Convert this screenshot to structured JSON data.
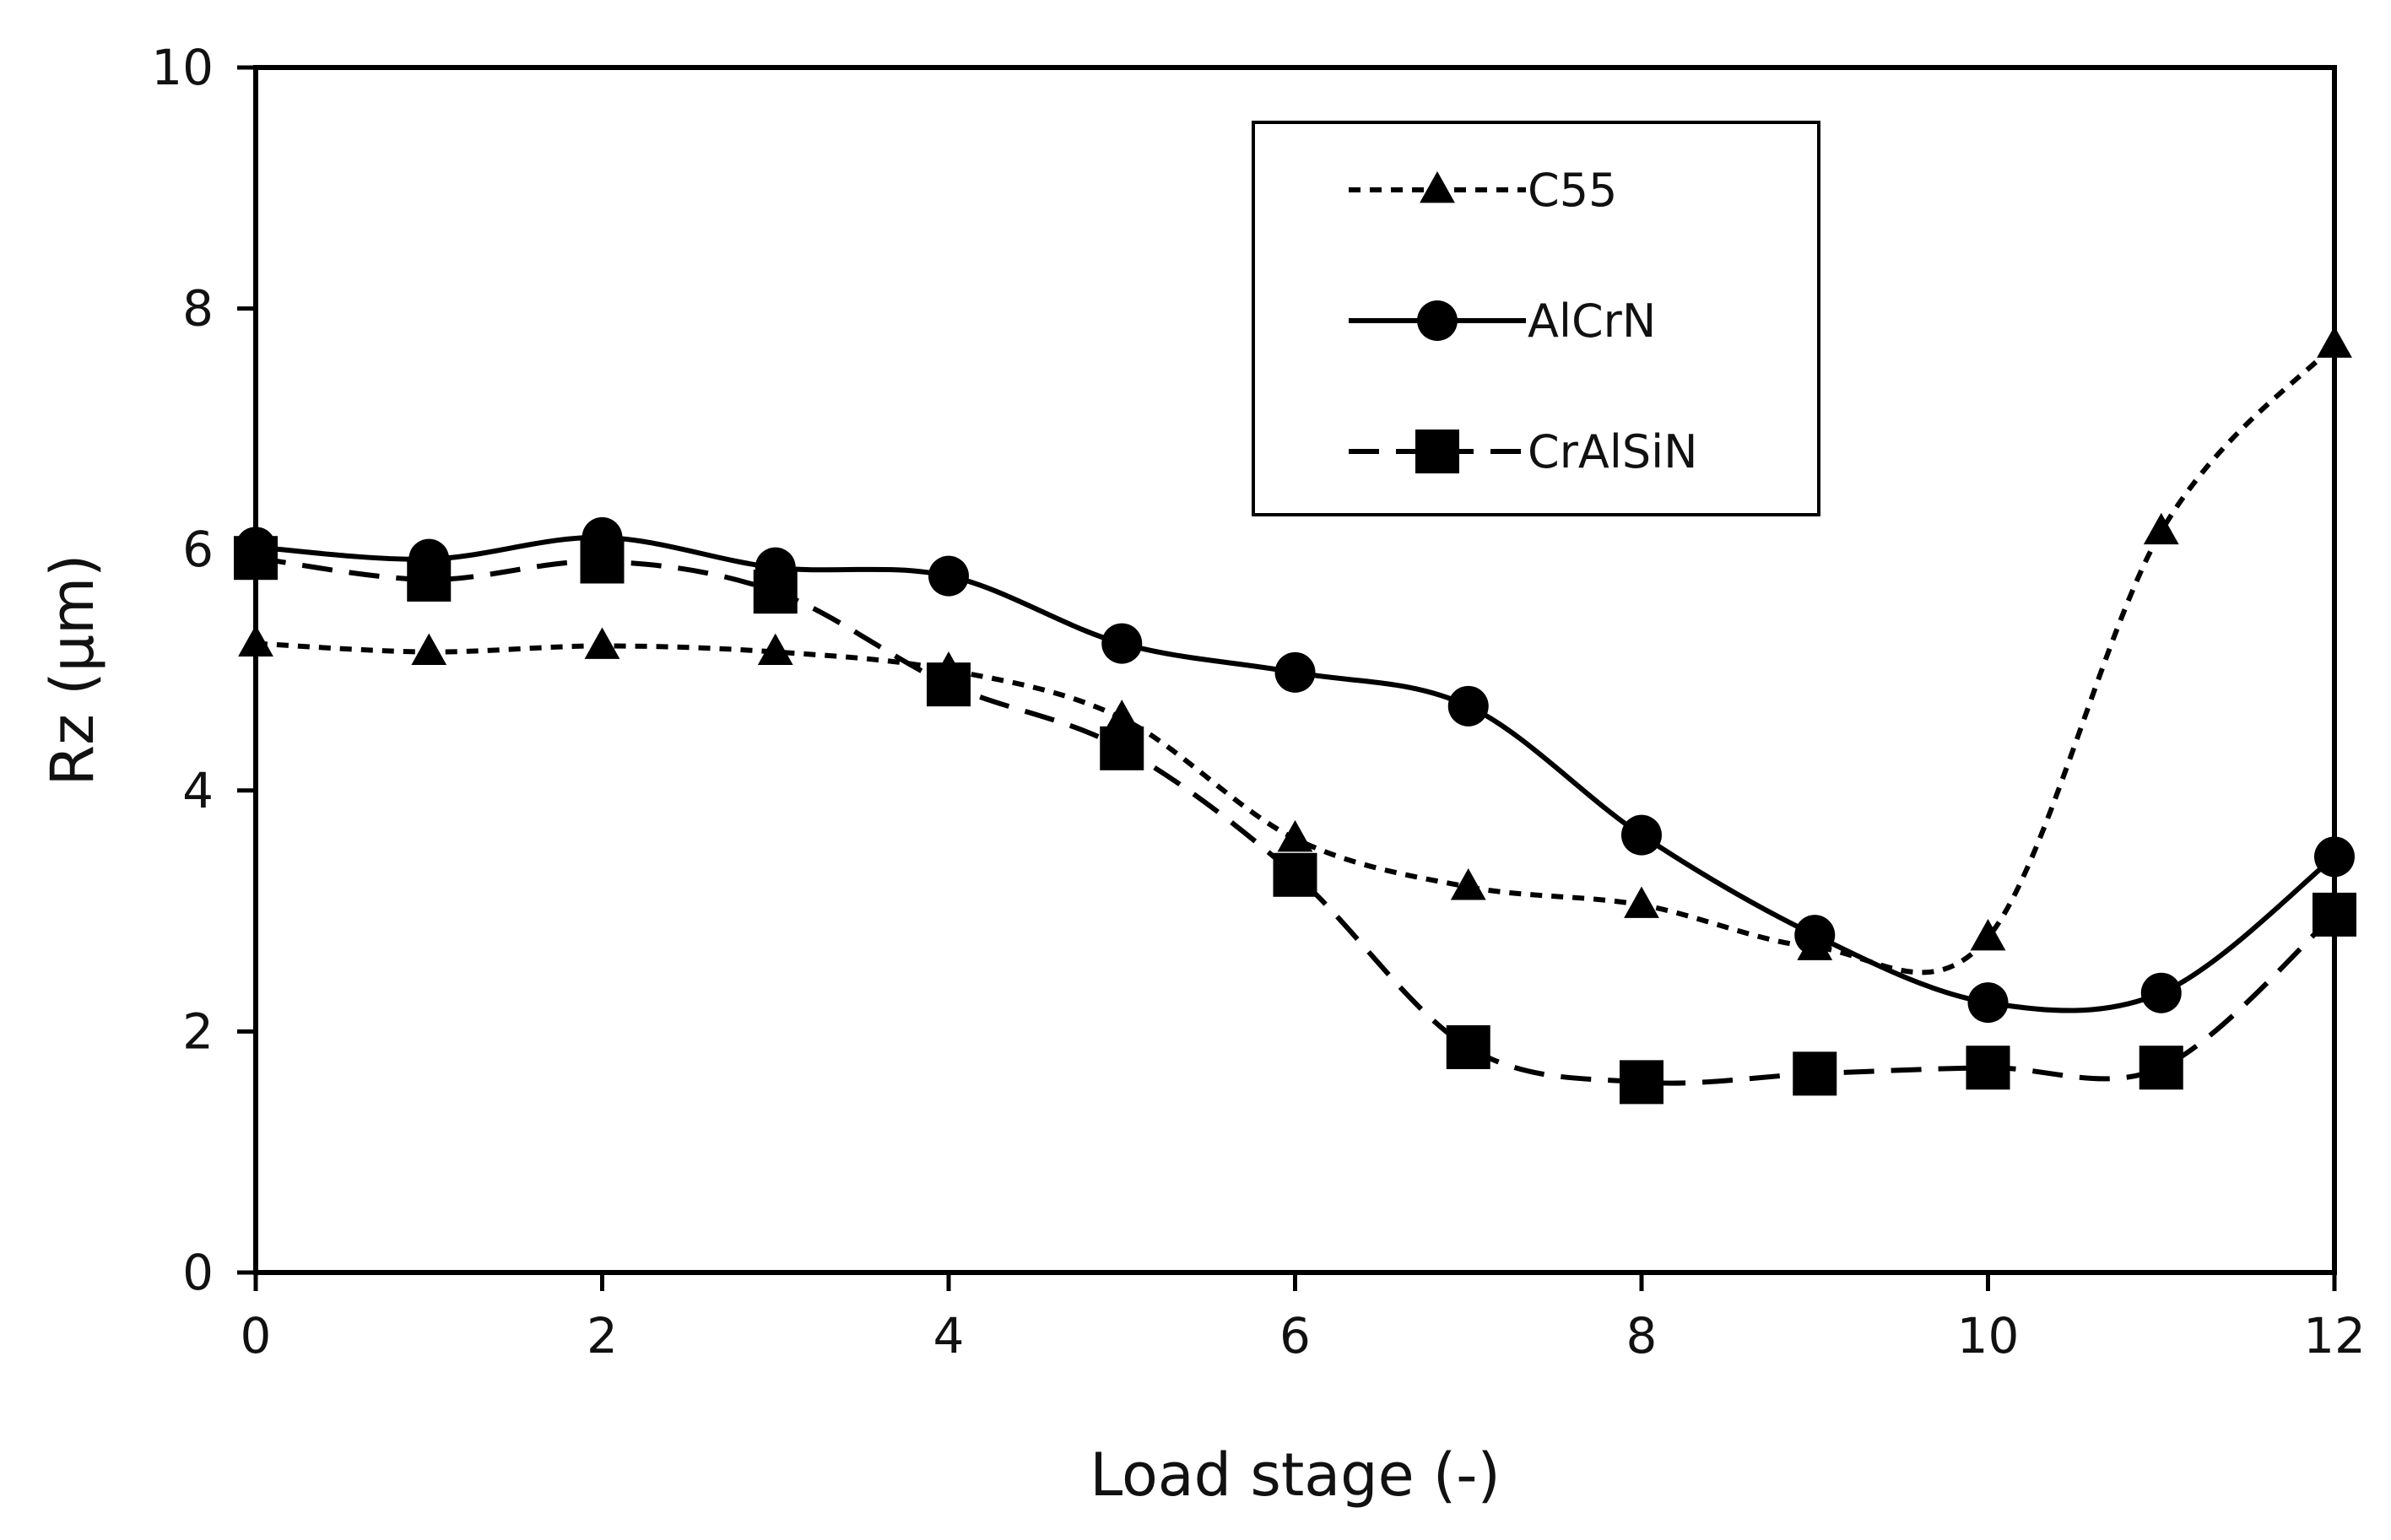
{
  "chart_data": {
    "type": "line",
    "title": "",
    "xlabel": "Load stage (-)",
    "ylabel": "Rz  (µm)",
    "xlim": [
      0,
      12
    ],
    "ylim": [
      0,
      10
    ],
    "xticks": [
      0,
      2,
      4,
      6,
      8,
      10,
      12
    ],
    "yticks": [
      0,
      2,
      4,
      6,
      8,
      10
    ],
    "grid": false,
    "legend_position": "top-right",
    "x": [
      0,
      1,
      2,
      3,
      4,
      5,
      6,
      7,
      8,
      9,
      10,
      11,
      12
    ],
    "series": [
      {
        "name": "C55",
        "marker": "triangle",
        "line": "short-dash",
        "values": [
          5.22,
          5.15,
          5.2,
          5.15,
          5.0,
          4.6,
          3.6,
          3.2,
          3.05,
          2.7,
          2.78,
          6.15,
          7.7
        ]
      },
      {
        "name": "AlCrN",
        "marker": "circle",
        "line": "solid",
        "values": [
          6.02,
          5.92,
          6.1,
          5.85,
          5.78,
          5.22,
          4.98,
          4.7,
          3.63,
          2.8,
          2.24,
          2.32,
          3.45
        ]
      },
      {
        "name": "CrAlSiN",
        "marker": "square",
        "line": "long-dash",
        "values": [
          5.93,
          5.75,
          5.9,
          5.65,
          4.88,
          4.35,
          3.3,
          1.87,
          1.58,
          1.65,
          1.7,
          1.7,
          2.97
        ]
      }
    ]
  }
}
